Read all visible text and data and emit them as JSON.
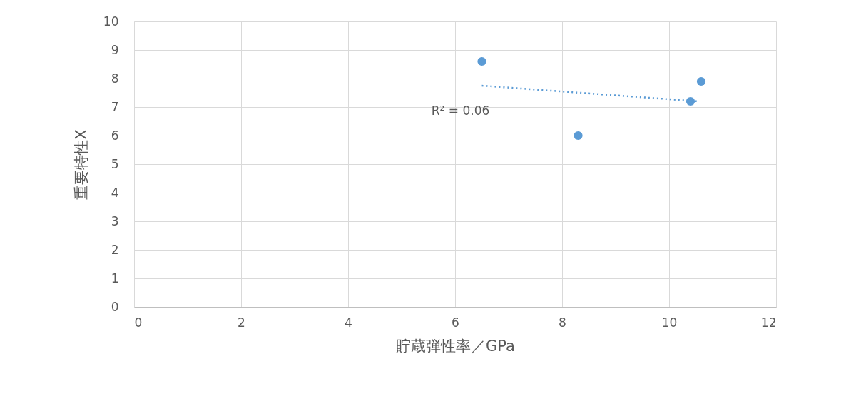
{
  "chart_data": {
    "type": "scatter",
    "xlabel": "貯蔵弾性率／GPa",
    "ylabel": "重要特性X",
    "xlim": [
      0,
      12
    ],
    "xticks": [
      0,
      2,
      4,
      6,
      8,
      10,
      12
    ],
    "ylim": [
      0,
      10
    ],
    "yticks": [
      0,
      1,
      2,
      3,
      4,
      5,
      6,
      7,
      8,
      9,
      10
    ],
    "grid": true,
    "series": [
      {
        "marker": "circle",
        "color": "#5b9bd5",
        "x": [
          6.5,
          8.3,
          10.4,
          10.6
        ],
        "values": [
          8.6,
          6.0,
          7.2,
          7.9
        ]
      },
      {
        "type": "line",
        "marker": "none",
        "color": "#5b9bd5",
        "line_style": "dotted",
        "x": [
          6.5,
          10.55
        ],
        "values": [
          7.75,
          7.2
        ]
      }
    ],
    "annotations": [
      "R² = 0.06"
    ]
  }
}
